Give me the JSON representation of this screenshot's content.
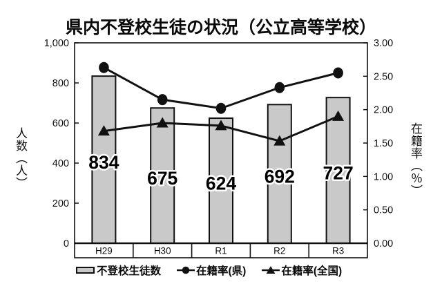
{
  "chart_data": {
    "type": "bar",
    "subtype": "bar-line-combo",
    "title": "県内不登校生徒の状況（公立高等学校）",
    "categories": [
      "H29",
      "H30",
      "R1",
      "R2",
      "R3"
    ],
    "series": [
      {
        "name": "不登校生徒数",
        "type": "bar",
        "marker": "bar",
        "axis": "left",
        "values": [
          834,
          675,
          624,
          692,
          727
        ]
      },
      {
        "name": "在籍率(県)",
        "type": "line",
        "marker": "circle",
        "axis": "right",
        "values": [
          2.63,
          2.15,
          2.02,
          2.33,
          2.55
        ]
      },
      {
        "name": "在籍率(全国)",
        "type": "line",
        "marker": "triangle",
        "axis": "right",
        "values": [
          1.68,
          1.8,
          1.76,
          1.53,
          1.9
        ]
      }
    ],
    "left_axis": {
      "label": "人数（人）",
      "min": 0,
      "max": 1000,
      "ticks": [
        "1,000",
        "800",
        "600",
        "400",
        "200",
        "0"
      ]
    },
    "right_axis": {
      "label": "在籍率（％）",
      "min": 0,
      "max": 3,
      "ticks": [
        "3.00",
        "2.50",
        "2.00",
        "1.50",
        "1.00",
        "0.50",
        "0.00"
      ]
    },
    "grid": false,
    "legend_position": "bottom",
    "colors": {
      "bar_fill": "#c9c9c9",
      "ink": "#111111",
      "background": "#ffffff"
    }
  }
}
